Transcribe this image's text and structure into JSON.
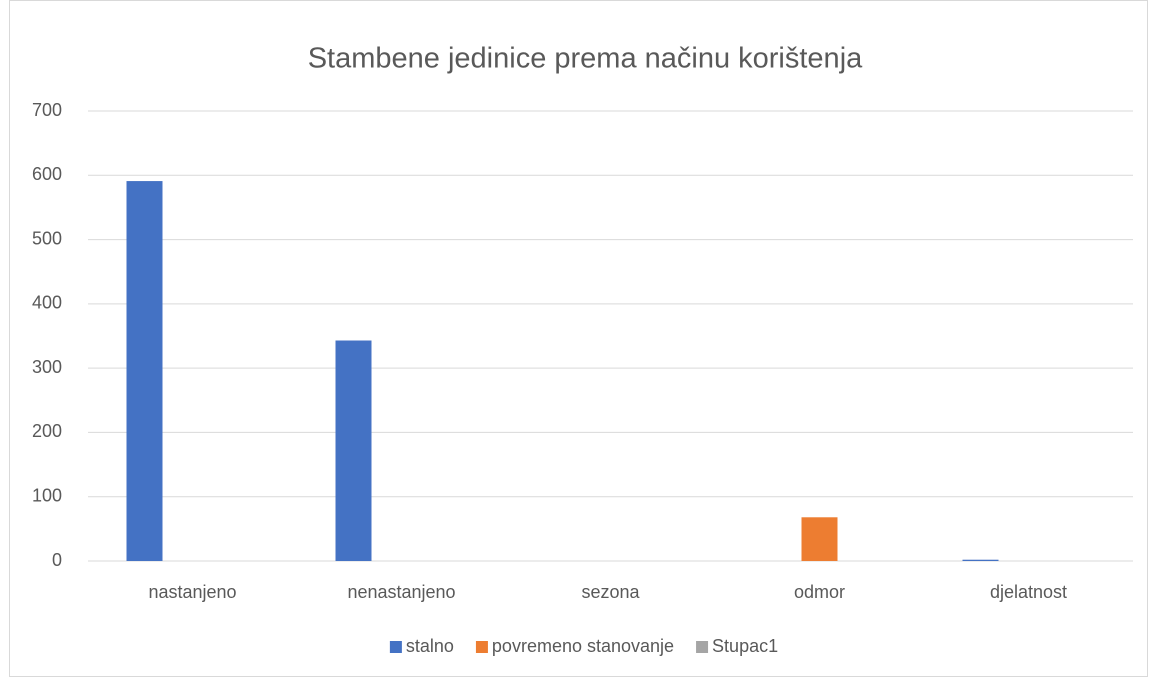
{
  "chart_data": {
    "type": "bar",
    "title": "Stambene jedinice prema načinu korištenja",
    "categories": [
      "nastanjeno",
      "nenastanjeno",
      "sezona",
      "odmor",
      "djelatnost"
    ],
    "series": [
      {
        "name": "stalno",
        "color": "#4472c4",
        "values": [
          591,
          343,
          0,
          0,
          2
        ]
      },
      {
        "name": "povremeno stanovanje",
        "color": "#ed7d31",
        "values": [
          0,
          0,
          0,
          68,
          0
        ]
      },
      {
        "name": "Stupac1",
        "color": "#a5a5a5",
        "values": [
          0,
          0,
          0,
          0,
          0
        ]
      }
    ],
    "ylim": [
      0,
      700
    ],
    "yticks": [
      0,
      100,
      200,
      300,
      400,
      500,
      600,
      700
    ],
    "grid": true,
    "legend": "bottom"
  }
}
